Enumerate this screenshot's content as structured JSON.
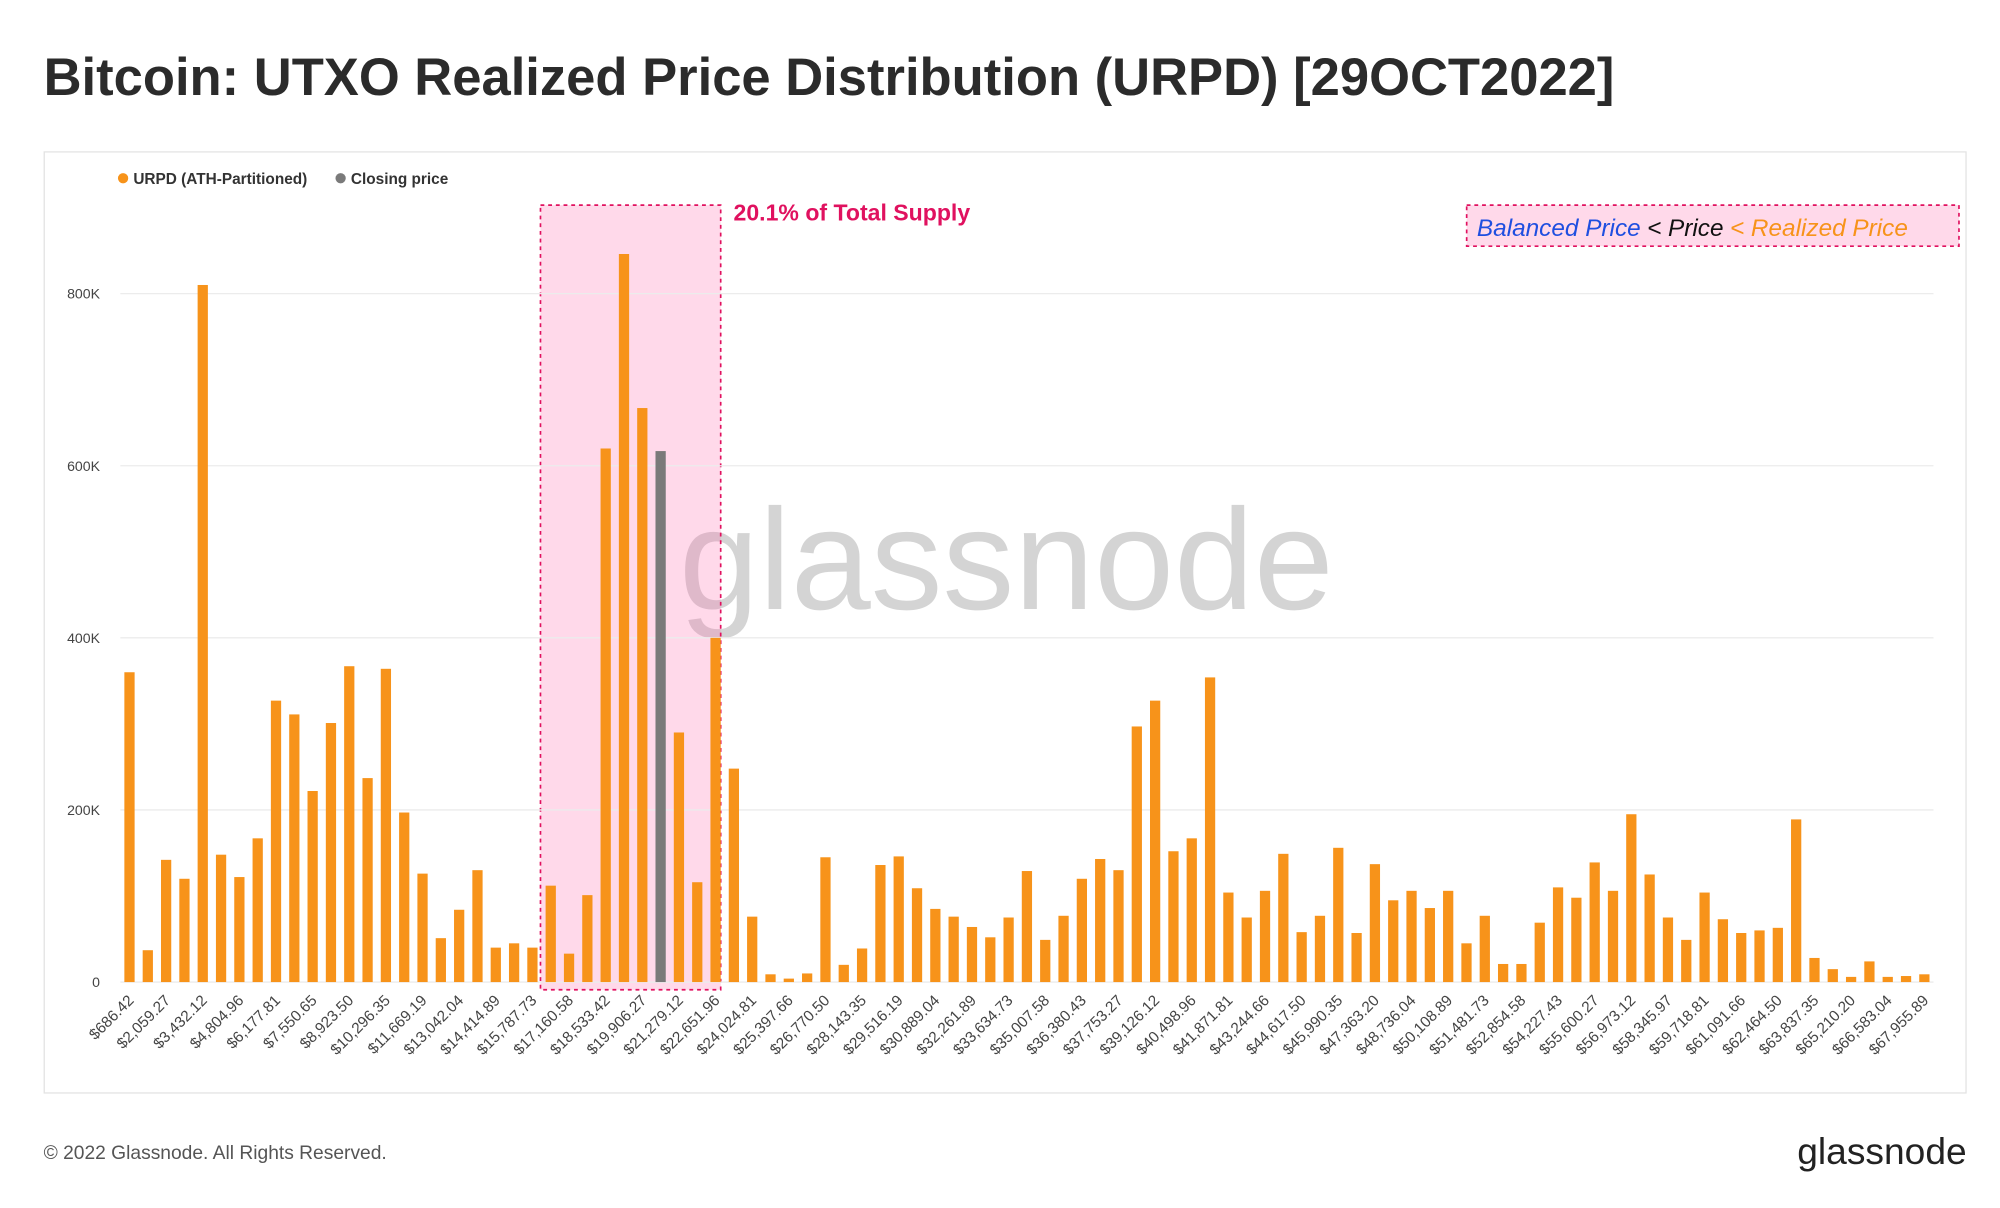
{
  "chart_data": {
    "type": "bar",
    "title": "Bitcoin: UTXO Realized Price Distribution (URPD) [29OCT2022]",
    "categories": [
      "$686.42",
      null,
      "$2,059.27",
      null,
      "$3,432.12",
      null,
      "$4,804.96",
      null,
      "$6,177.81",
      null,
      "$7,550.65",
      null,
      "$8,923.50",
      null,
      "$10,296.35",
      null,
      "$11,669.19",
      null,
      "$13,042.04",
      null,
      "$14,414.89",
      null,
      "$15,787.73",
      null,
      "$17,160.58",
      null,
      "$18,533.42",
      null,
      "$19,906.27",
      null,
      "$21,279.12",
      null,
      "$22,651.96",
      null,
      "$24,024.81",
      null,
      "$25,397.66",
      null,
      "$26,770.50",
      null,
      "$28,143.35",
      null,
      "$29,516.19",
      null,
      "$30,889.04",
      null,
      "$32,261.89",
      null,
      "$33,634.73",
      null,
      "$35,007.58",
      null,
      "$36,380.43",
      null,
      "$37,753.27",
      null,
      "$39,126.12",
      null,
      "$40,498.96",
      null,
      "$41,871.81",
      null,
      "$43,244.66",
      null,
      "$44,617.50",
      null,
      "$45,990.35",
      null,
      "$47,363.20",
      null,
      "$48,736.04",
      null,
      "$50,108.89",
      null,
      "$51,481.73",
      null,
      "$52,854.58",
      null,
      "$54,227.43",
      null,
      "$55,600.27",
      null,
      "$56,973.12",
      null,
      "$58,345.97",
      null,
      "$59,718.81",
      null,
      "$61,091.66",
      null,
      "$62,464.50",
      null,
      "$63,837.35",
      null,
      "$65,210.20",
      null,
      "$66,583.04",
      null,
      "$67,955.89"
    ],
    "series": [
      {
        "name": "URPD (ATH-Partitioned)",
        "color": "#f7931a",
        "values": [
          360000,
          37000,
          142000,
          120000,
          810000,
          148000,
          122000,
          167000,
          327000,
          311000,
          222000,
          301000,
          367000,
          237000,
          364000,
          197000,
          126000,
          51000,
          84000,
          130000,
          40000,
          45000,
          40000,
          112000,
          33000,
          101000,
          620000,
          846000,
          667000,
          null,
          290000,
          116000,
          400000,
          248000,
          76000,
          9000,
          4000,
          10000,
          145000,
          20000,
          39000,
          136000,
          146000,
          109000,
          85000,
          76000,
          64000,
          52000,
          75000,
          129000,
          49000,
          77000,
          120000,
          143000,
          130000,
          297000,
          327000,
          152000,
          167000,
          354000,
          104000,
          75000,
          106000,
          149000,
          58000,
          77000,
          156000,
          57000,
          137000,
          95000,
          106000,
          86000,
          106000,
          45000,
          77000,
          21000,
          21000,
          69000,
          110000,
          98000,
          139000,
          106000,
          195000,
          125000,
          75000,
          49000,
          104000,
          73000,
          57000,
          60000,
          63000,
          189000,
          28000,
          15000,
          6000,
          24000,
          6000,
          7000,
          9000
        ]
      },
      {
        "name": "Closing price",
        "color": "#7a7a7a",
        "values": [
          null,
          null,
          null,
          null,
          null,
          null,
          null,
          null,
          null,
          null,
          null,
          null,
          null,
          null,
          null,
          null,
          null,
          null,
          null,
          null,
          null,
          null,
          null,
          null,
          null,
          null,
          null,
          null,
          null,
          617000,
          null,
          null,
          null,
          null,
          null,
          null,
          null,
          null,
          null,
          null,
          null,
          null,
          null,
          null,
          null,
          null,
          null,
          null,
          null,
          null,
          null,
          null,
          null,
          null,
          null,
          null,
          null,
          null,
          null,
          null,
          null,
          null,
          null,
          null,
          null,
          null,
          null,
          null,
          null,
          null,
          null,
          null,
          null,
          null,
          null,
          null,
          null,
          null,
          null,
          null,
          null,
          null,
          null,
          null,
          null,
          null,
          null,
          null,
          null,
          null,
          null,
          null,
          null,
          null,
          null,
          null,
          null,
          null,
          null
        ]
      }
    ],
    "ylim": [
      0,
      900000
    ],
    "yticks": [
      0,
      {
        "value": 200000,
        "label": "200K"
      },
      {
        "value": 400000,
        "label": "400K"
      },
      {
        "value": 600000,
        "label": "600K"
      },
      {
        "value": 800000,
        "label": "800K"
      }
    ],
    "grid": true,
    "legend": "top-left",
    "annotations": {
      "supply_share": "20.1% of Total Supply",
      "price_order": [
        {
          "text": "Balanced Price",
          "color": "#1f4fe0"
        },
        {
          "text": "< Price",
          "color": "#111111"
        },
        {
          "text": "< Realized Price",
          "color": "#f7931a"
        }
      ]
    },
    "watermark": "glassnode",
    "footer": "© 2022 Glassnode. All Rights Reserved.",
    "logo": "glassnode"
  }
}
